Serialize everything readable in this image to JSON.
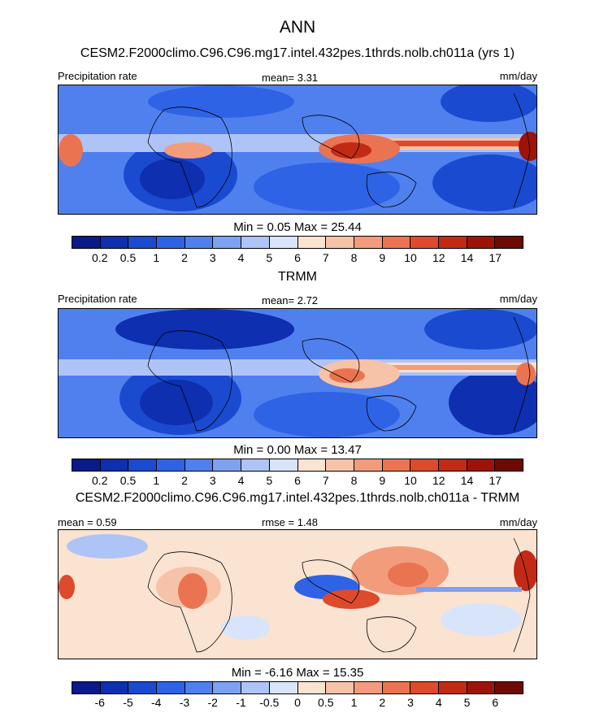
{
  "title": "ANN",
  "panels": [
    {
      "heading": "CESM2.F2000climo.C96.C96.mg17.intel.432pes.1thrds.nolb.ch011a (yrs 1)",
      "left_label": "Precipitation rate",
      "center_label": "mean=   3.31",
      "right_label": "mm/day",
      "minmax": "Min =   0.05 Max =  25.44"
    },
    {
      "heading": "TRMM",
      "left_label": "Precipitation rate",
      "center_label": "mean=   2.72",
      "right_label": "mm/day",
      "minmax": "Min =   0.00 Max =  13.47"
    },
    {
      "heading": "CESM2.F2000climo.C96.C96.mg17.intel.432pes.1thrds.nolb.ch011a - TRMM",
      "left_label": "mean =   0.59",
      "center_label": "rmse =   1.48",
      "right_label": "mm/day",
      "minmax": "Min =  -6.16 Max =  15.35"
    }
  ],
  "colorbar_abs": {
    "ticks": [
      "0.2",
      "0.5",
      "1",
      "2",
      "3",
      "4",
      "5",
      "6",
      "7",
      "8",
      "9",
      "10",
      "12",
      "14",
      "17"
    ],
    "colors": [
      "#0a1a8a",
      "#0d2fb0",
      "#1a4ad0",
      "#2f63e6",
      "#4f80ee",
      "#7ea1f2",
      "#aec4f6",
      "#d8e4fa",
      "#fbe3d2",
      "#f7c3a8",
      "#f29c7c",
      "#ea7452",
      "#dd4a2c",
      "#c32a16",
      "#9c1408",
      "#6e0a04"
    ]
  },
  "colorbar_diff": {
    "ticks": [
      "-6",
      "-5",
      "-4",
      "-3",
      "-2",
      "-1",
      "-0.5",
      "0",
      "0.5",
      "1",
      "2",
      "3",
      "4",
      "5",
      "6"
    ],
    "colors": [
      "#0a1a8a",
      "#0d2fb0",
      "#1a4ad0",
      "#2f63e6",
      "#4f80ee",
      "#7ea1f2",
      "#aec4f6",
      "#d8e4fa",
      "#fbe3d2",
      "#f7c3a8",
      "#f29c7c",
      "#ea7452",
      "#dd4a2c",
      "#c32a16",
      "#9c1408",
      "#6e0a04"
    ]
  }
}
